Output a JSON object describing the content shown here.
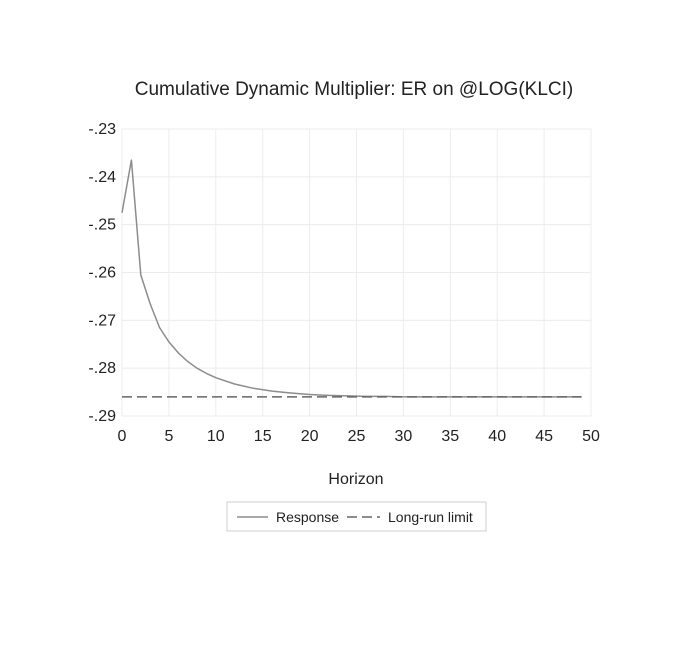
{
  "chart_data": {
    "type": "line",
    "title": "Cumulative Dynamic Multiplier: ER on @LOG(KLCI)",
    "xlabel": "Horizon",
    "ylabel": "",
    "xlim": [
      0,
      50
    ],
    "ylim": [
      -0.29,
      -0.23
    ],
    "x_ticks": [
      0,
      5,
      10,
      15,
      20,
      25,
      30,
      35,
      40,
      45,
      50
    ],
    "x_tick_labels": [
      "0",
      "5",
      "10",
      "15",
      "20",
      "25",
      "30",
      "35",
      "40",
      "45",
      "50"
    ],
    "y_ticks": [
      -0.23,
      -0.24,
      -0.25,
      -0.26,
      -0.27,
      -0.28,
      -0.29
    ],
    "y_tick_labels": [
      "-.23",
      "-.24",
      "-.25",
      "-.26",
      "-.27",
      "-.28",
      "-.29"
    ],
    "grid": true,
    "legend_position": "bottom-center",
    "series": [
      {
        "name": "Response",
        "style": "solid",
        "color": "#8c8c8c",
        "x": [
          0,
          1,
          2,
          3,
          4,
          5,
          6,
          7,
          8,
          9,
          10,
          12,
          14,
          16,
          18,
          20,
          22,
          24,
          26,
          28,
          30,
          35,
          40,
          45,
          49
        ],
        "values": [
          -0.2475,
          -0.2365,
          -0.2605,
          -0.2665,
          -0.2715,
          -0.2745,
          -0.2768,
          -0.2786,
          -0.28,
          -0.2811,
          -0.282,
          -0.2833,
          -0.2842,
          -0.2848,
          -0.2852,
          -0.2855,
          -0.2857,
          -0.2858,
          -0.2859,
          -0.2859,
          -0.286,
          -0.286,
          -0.286,
          -0.286,
          -0.286
        ]
      },
      {
        "name": "Long-run limit",
        "style": "dashed",
        "color": "#666666",
        "x": [
          0,
          49
        ],
        "values": [
          -0.286,
          -0.286
        ]
      }
    ]
  }
}
